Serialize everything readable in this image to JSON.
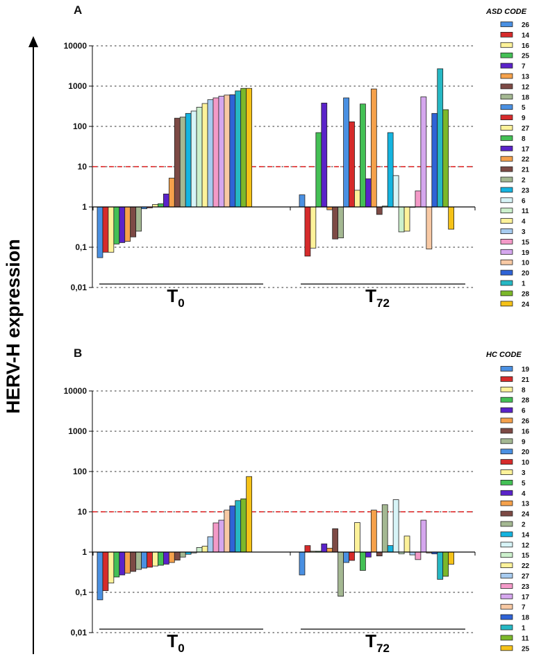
{
  "chart_data": {
    "type": "bar",
    "y_scale": "log10",
    "ylabel": "HERV-H expression",
    "y_ticks": [
      "10000",
      "1000",
      "100",
      "10",
      "1",
      "0,1",
      "0,01"
    ],
    "y_tick_values": [
      10000,
      1000,
      100,
      10,
      1,
      0.1,
      0.01
    ],
    "ylim": [
      0.01,
      10000
    ],
    "baseline": 1,
    "threshold": {
      "value": 10,
      "color": "#e11d1d",
      "style": "dashed"
    },
    "panels": [
      {
        "letter": "A",
        "legend_title": "ASD CODE",
        "legend": [
          {
            "code": "26",
            "color": "#4a90e2"
          },
          {
            "code": "14",
            "color": "#d62b2b"
          },
          {
            "code": "16",
            "color": "#fdf29a"
          },
          {
            "code": "25",
            "color": "#44c055"
          },
          {
            "code": "7",
            "color": "#5a23c9"
          },
          {
            "code": "13",
            "color": "#f5a14b"
          },
          {
            "code": "12",
            "color": "#7d4a45"
          },
          {
            "code": "18",
            "color": "#a4b892"
          },
          {
            "code": "5",
            "color": "#4a90e2"
          },
          {
            "code": "9",
            "color": "#d62b2b"
          },
          {
            "code": "27",
            "color": "#fdf29a"
          },
          {
            "code": "8",
            "color": "#44c055"
          },
          {
            "code": "17",
            "color": "#5a23c9"
          },
          {
            "code": "22",
            "color": "#f5a14b"
          },
          {
            "code": "21",
            "color": "#7d4a45"
          },
          {
            "code": "2",
            "color": "#a4b892"
          },
          {
            "code": "23",
            "color": "#14b4e0"
          },
          {
            "code": "6",
            "color": "#d7f4f7"
          },
          {
            "code": "11",
            "color": "#ccf0cc"
          },
          {
            "code": "4",
            "color": "#fdf29a"
          },
          {
            "code": "3",
            "color": "#a7cbef"
          },
          {
            "code": "15",
            "color": "#f49ac8"
          },
          {
            "code": "19",
            "color": "#d5a7ee"
          },
          {
            "code": "10",
            "color": "#f8c9a4"
          },
          {
            "code": "20",
            "color": "#2f63d6"
          },
          {
            "code": "1",
            "color": "#26b8c4"
          },
          {
            "code": "28",
            "color": "#7cb82a"
          },
          {
            "code": "24",
            "color": "#f5c218"
          }
        ],
        "groups": [
          {
            "label": "T",
            "sub": "0",
            "series": [
              {
                "code": "26",
                "value": 0.055
              },
              {
                "code": "14",
                "value": 0.075
              },
              {
                "code": "16",
                "value": 0.075
              },
              {
                "code": "25",
                "value": 0.12
              },
              {
                "code": "7",
                "value": 0.13
              },
              {
                "code": "13",
                "value": 0.14
              },
              {
                "code": "12",
                "value": 0.18
              },
              {
                "code": "18",
                "value": 0.25
              },
              {
                "code": "5",
                "value": 0.9
              },
              {
                "code": "9",
                "value": 0.95
              },
              {
                "code": "27",
                "value": 1.15
              },
              {
                "code": "8",
                "value": 1.2
              },
              {
                "code": "17",
                "value": 2.1
              },
              {
                "code": "22",
                "value": 5.2
              },
              {
                "code": "21",
                "value": 160
              },
              {
                "code": "2",
                "value": 170
              },
              {
                "code": "23",
                "value": 210
              },
              {
                "code": "6",
                "value": 240
              },
              {
                "code": "11",
                "value": 300
              },
              {
                "code": "4",
                "value": 370
              },
              {
                "code": "3",
                "value": 460
              },
              {
                "code": "15",
                "value": 510
              },
              {
                "code": "19",
                "value": 560
              },
              {
                "code": "10",
                "value": 600
              },
              {
                "code": "20",
                "value": 610
              },
              {
                "code": "1",
                "value": 760
              },
              {
                "code": "28",
                "value": 880
              },
              {
                "code": "24",
                "value": 880
              }
            ]
          },
          {
            "label": "T",
            "sub": "72",
            "series": [
              {
                "code": "26",
                "value": 2.0
              },
              {
                "code": "14",
                "value": 0.06
              },
              {
                "code": "16",
                "value": 0.095
              },
              {
                "code": "25",
                "value": 70
              },
              {
                "code": "7",
                "value": 380
              },
              {
                "code": "13",
                "value": 0.85
              },
              {
                "code": "12",
                "value": 0.16
              },
              {
                "code": "18",
                "value": 0.17
              },
              {
                "code": "5",
                "value": 510
              },
              {
                "code": "9",
                "value": 130
              },
              {
                "code": "27",
                "value": 2.6
              },
              {
                "code": "8",
                "value": 360
              },
              {
                "code": "17",
                "value": 5.0
              },
              {
                "code": "22",
                "value": 850
              },
              {
                "code": "21",
                "value": 0.65
              },
              {
                "code": "2",
                "value": 1.05
              },
              {
                "code": "23",
                "value": 70
              },
              {
                "code": "6",
                "value": 6.0
              },
              {
                "code": "11",
                "value": 0.24
              },
              {
                "code": "4",
                "value": 0.25
              },
              {
                "code": "3",
                "value": 1.0
              },
              {
                "code": "15",
                "value": 2.5
              },
              {
                "code": "19",
                "value": 540
              },
              {
                "code": "10",
                "value": 0.09
              },
              {
                "code": "20",
                "value": 210
              },
              {
                "code": "1",
                "value": 2700
              },
              {
                "code": "28",
                "value": 260
              },
              {
                "code": "24",
                "value": 0.28
              }
            ]
          }
        ]
      },
      {
        "letter": "B",
        "legend_title": "HC CODE",
        "legend": [
          {
            "code": "19",
            "color": "#4a90e2"
          },
          {
            "code": "21",
            "color": "#d62b2b"
          },
          {
            "code": "8",
            "color": "#fdf29a"
          },
          {
            "code": "28",
            "color": "#44c055"
          },
          {
            "code": "6",
            "color": "#5a23c9"
          },
          {
            "code": "26",
            "color": "#f5a14b"
          },
          {
            "code": "16",
            "color": "#7d4a45"
          },
          {
            "code": "9",
            "color": "#a4b892"
          },
          {
            "code": "20",
            "color": "#4a90e2"
          },
          {
            "code": "10",
            "color": "#d62b2b"
          },
          {
            "code": "3",
            "color": "#fdf29a"
          },
          {
            "code": "5",
            "color": "#44c055"
          },
          {
            "code": "4",
            "color": "#5a23c9"
          },
          {
            "code": "13",
            "color": "#f5a14b"
          },
          {
            "code": "24",
            "color": "#7d4a45"
          },
          {
            "code": "2",
            "color": "#a4b892"
          },
          {
            "code": "14",
            "color": "#14b4e0"
          },
          {
            "code": "12",
            "color": "#d7f4f7"
          },
          {
            "code": "15",
            "color": "#ccf0cc"
          },
          {
            "code": "22",
            "color": "#fdf29a"
          },
          {
            "code": "27",
            "color": "#a7cbef"
          },
          {
            "code": "23",
            "color": "#f49ac8"
          },
          {
            "code": "17",
            "color": "#d5a7ee"
          },
          {
            "code": "7",
            "color": "#f8c9a4"
          },
          {
            "code": "18",
            "color": "#2f63d6"
          },
          {
            "code": "1",
            "color": "#26b8c4"
          },
          {
            "code": "11",
            "color": "#7cb82a"
          },
          {
            "code": "25",
            "color": "#f5c218"
          }
        ],
        "groups": [
          {
            "label": "T",
            "sub": "0",
            "series": [
              {
                "code": "19",
                "value": 0.065
              },
              {
                "code": "21",
                "value": 0.11
              },
              {
                "code": "8",
                "value": 0.17
              },
              {
                "code": "28",
                "value": 0.24
              },
              {
                "code": "6",
                "value": 0.27
              },
              {
                "code": "26",
                "value": 0.3
              },
              {
                "code": "16",
                "value": 0.33
              },
              {
                "code": "9",
                "value": 0.37
              },
              {
                "code": "20",
                "value": 0.4
              },
              {
                "code": "10",
                "value": 0.42
              },
              {
                "code": "3",
                "value": 0.45
              },
              {
                "code": "5",
                "value": 0.47
              },
              {
                "code": "4",
                "value": 0.5
              },
              {
                "code": "13",
                "value": 0.55
              },
              {
                "code": "24",
                "value": 0.63
              },
              {
                "code": "2",
                "value": 0.75
              },
              {
                "code": "14",
                "value": 0.88
              },
              {
                "code": "12",
                "value": 0.95
              },
              {
                "code": "15",
                "value": 1.3
              },
              {
                "code": "22",
                "value": 1.4
              },
              {
                "code": "27",
                "value": 2.4
              },
              {
                "code": "23",
                "value": 5.3
              },
              {
                "code": "17",
                "value": 6.2
              },
              {
                "code": "7",
                "value": 11
              },
              {
                "code": "18",
                "value": 14
              },
              {
                "code": "1",
                "value": 19
              },
              {
                "code": "11",
                "value": 21
              },
              {
                "code": "25",
                "value": 75
              }
            ]
          },
          {
            "label": "T",
            "sub": "72",
            "series": [
              {
                "code": "19",
                "value": 0.27
              },
              {
                "code": "21",
                "value": 1.45
              },
              {
                "code": "8",
                "value": 1.05
              },
              {
                "code": "28",
                "value": 1.05
              },
              {
                "code": "6",
                "value": 1.6
              },
              {
                "code": "26",
                "value": 1.25
              },
              {
                "code": "16",
                "value": 3.8
              },
              {
                "code": "9",
                "value": 0.08
              },
              {
                "code": "20",
                "value": 0.55
              },
              {
                "code": "10",
                "value": 0.62
              },
              {
                "code": "3",
                "value": 5.4
              },
              {
                "code": "5",
                "value": 0.35
              },
              {
                "code": "4",
                "value": 0.75
              },
              {
                "code": "13",
                "value": 11
              },
              {
                "code": "24",
                "value": 0.8
              },
              {
                "code": "2",
                "value": 15
              },
              {
                "code": "14",
                "value": 1.45
              },
              {
                "code": "12",
                "value": 20
              },
              {
                "code": "15",
                "value": 0.9
              },
              {
                "code": "22",
                "value": 2.5
              },
              {
                "code": "27",
                "value": 0.85
              },
              {
                "code": "23",
                "value": 0.65
              },
              {
                "code": "17",
                "value": 6.2
              },
              {
                "code": "7",
                "value": 0.95
              },
              {
                "code": "18",
                "value": 0.9
              },
              {
                "code": "1",
                "value": 0.21
              },
              {
                "code": "11",
                "value": 0.25
              },
              {
                "code": "25",
                "value": 0.5
              }
            ]
          }
        ]
      }
    ]
  }
}
